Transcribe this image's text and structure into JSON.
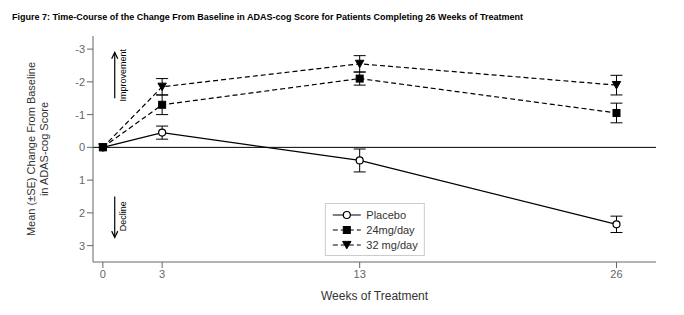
{
  "chart_data": {
    "type": "line",
    "title": "Figure 7: Time-Course of the Change From Baseline in ADAS-cog Score for Patients Completing 26 Weeks of Treatment",
    "x_label": "Weeks of Treatment",
    "y_label": "Mean (±SE) Change From Baseline\nin ADAS-cog Score",
    "x": [
      0,
      3,
      13,
      26
    ],
    "series": [
      {
        "name": "Placebo",
        "values": [
          0.0,
          -0.45,
          0.4,
          2.35
        ],
        "errors": [
          0.0,
          0.2,
          0.35,
          0.25
        ],
        "color": "#000000",
        "marker": "open_circle",
        "line_style": "solid"
      },
      {
        "name": "24mg/day",
        "values": [
          0.0,
          -1.3,
          -2.1,
          -1.05
        ],
        "errors": [
          0.0,
          0.3,
          0.2,
          0.3
        ],
        "color": "#000000",
        "marker": "square",
        "line_style": "dashed"
      },
      {
        "name": "32 mg/day",
        "values": [
          0.0,
          -1.85,
          -2.55,
          -1.9
        ],
        "errors": [
          0.0,
          0.25,
          0.25,
          0.3
        ],
        "color": "#000000",
        "marker": "triangle_down",
        "line_style": "dashed"
      }
    ],
    "xlim": [
      -0.5,
      28
    ],
    "xticks": [
      0,
      3,
      13,
      26
    ],
    "ylim": [
      3.5,
      -3.4
    ],
    "yticks": [
      -3,
      -2,
      -1,
      0,
      1,
      2,
      3
    ],
    "hline": 0,
    "annotations": [
      {
        "text": "Improvement",
        "x": 0.85,
        "y": -2.2,
        "arrow_from": [
          0.6,
          -1.5
        ],
        "arrow_to": [
          0.6,
          -2.9
        ]
      },
      {
        "text": "Decline",
        "x": 0.85,
        "y": 2.1,
        "arrow_from": [
          0.6,
          1.5
        ],
        "arrow_to": [
          0.6,
          2.75
        ]
      }
    ],
    "grid": false,
    "legend": "lower center"
  }
}
